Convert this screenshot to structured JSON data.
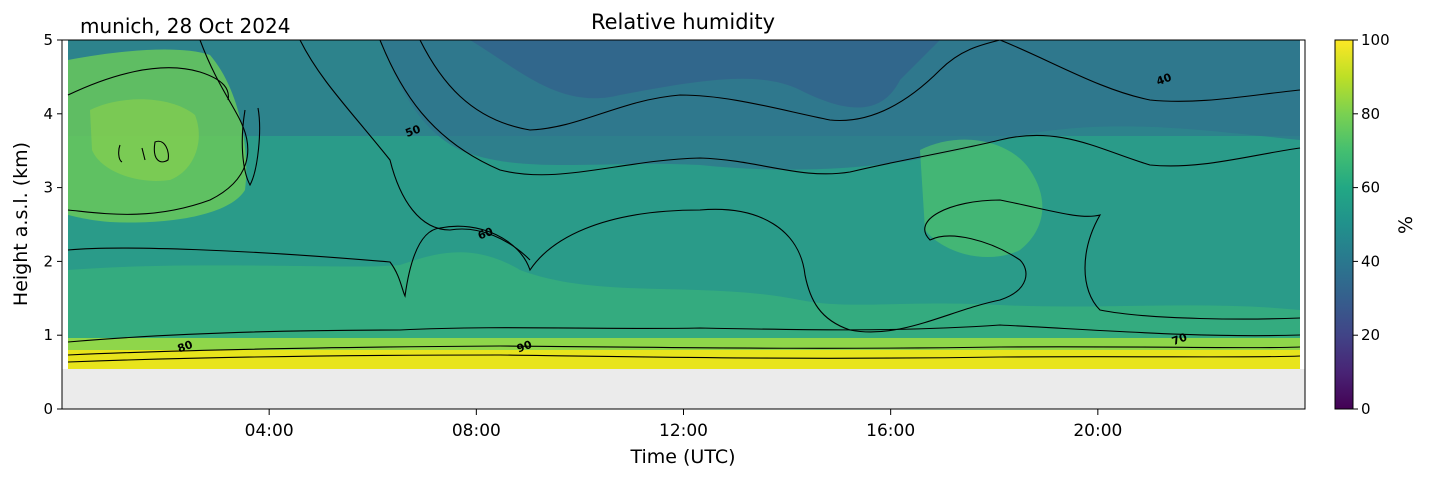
{
  "header": {
    "location_date": "munich, 28 Oct 2024",
    "title": "Relative humidity"
  },
  "chart_data": {
    "type": "heatmap",
    "title": "Relative humidity",
    "xlabel": "Time (UTC)",
    "ylabel": "Height a.s.l. (km)",
    "x_ticks": [
      "04:00",
      "08:00",
      "12:00",
      "16:00",
      "20:00"
    ],
    "x_tick_hours": [
      4,
      8,
      12,
      16,
      20
    ],
    "xlim_hours": [
      0,
      24
    ],
    "y_ticks": [
      0,
      1,
      2,
      3,
      4,
      5
    ],
    "ylim_km": [
      0,
      5
    ],
    "data_bottom_km": 0.55,
    "colorbar": {
      "label": "%",
      "ticks": [
        0,
        20,
        40,
        60,
        80,
        100
      ],
      "range": [
        0,
        100
      ],
      "colormap": "viridis"
    },
    "contour_levels": [
      40,
      50,
      60,
      70,
      80,
      90
    ],
    "contour_labels": [
      {
        "text": "50",
        "x_hour": 6.8,
        "y_km": 3.72
      },
      {
        "text": "60",
        "x_hour": 8.2,
        "y_km": 2.33
      },
      {
        "text": "40",
        "x_hour": 21.3,
        "y_km": 4.42
      },
      {
        "text": "70",
        "x_hour": 21.6,
        "y_km": 0.9
      },
      {
        "text": "80",
        "x_hour": 2.4,
        "y_km": 0.8
      },
      {
        "text": "90",
        "x_hour": 8.95,
        "y_km": 0.8
      }
    ],
    "colors": {
      "missing": "#ebebeb",
      "contour": "#000000"
    }
  }
}
